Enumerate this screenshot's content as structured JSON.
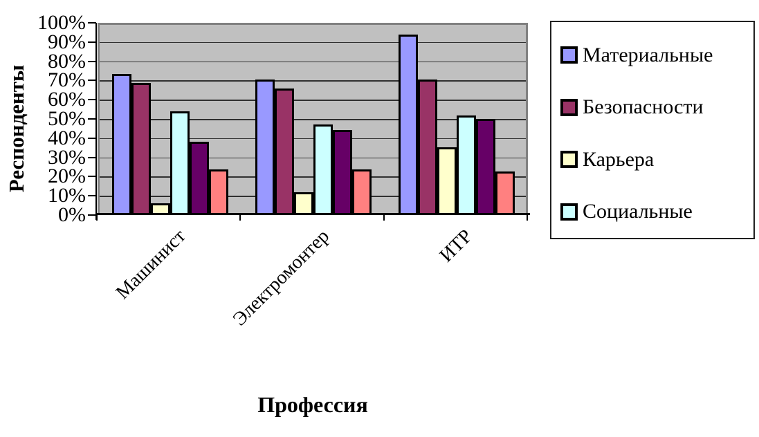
{
  "chart_data": {
    "type": "bar",
    "title": "",
    "xlabel": "Профессия",
    "ylabel": "Респонденты",
    "categories": [
      "Машинист",
      "Электромонтер",
      "ИТР"
    ],
    "series": [
      {
        "name": "Материальные",
        "color": "#9999FF",
        "in_legend": true,
        "values": [
          74,
          71,
          95
        ]
      },
      {
        "name": "Безопасности",
        "color": "#993366",
        "in_legend": true,
        "values": [
          69,
          66,
          71
        ]
      },
      {
        "name": "Карьера",
        "color": "#FFFFCC",
        "in_legend": true,
        "values": [
          5,
          11,
          35
        ]
      },
      {
        "name": "Социальные",
        "color": "#CCFFFF",
        "in_legend": true,
        "values": [
          54,
          47,
          52
        ]
      },
      {
        "name": "",
        "color": "#660066",
        "in_legend": false,
        "values": [
          38,
          44,
          50
        ]
      },
      {
        "name": "",
        "color": "#FF8080",
        "in_legend": false,
        "values": [
          23,
          23,
          22
        ]
      }
    ],
    "ylim": [
      0,
      100
    ],
    "ytick_step": 10,
    "ytick_labels": [
      "100%",
      "90%",
      "80%",
      "70%",
      "60%",
      "50%",
      "40%",
      "30%",
      "20%",
      "10%",
      "0%"
    ],
    "grid": true,
    "legend_position": "right",
    "plot_bg": "#C0C0C0",
    "gridline_color": "#303030"
  }
}
